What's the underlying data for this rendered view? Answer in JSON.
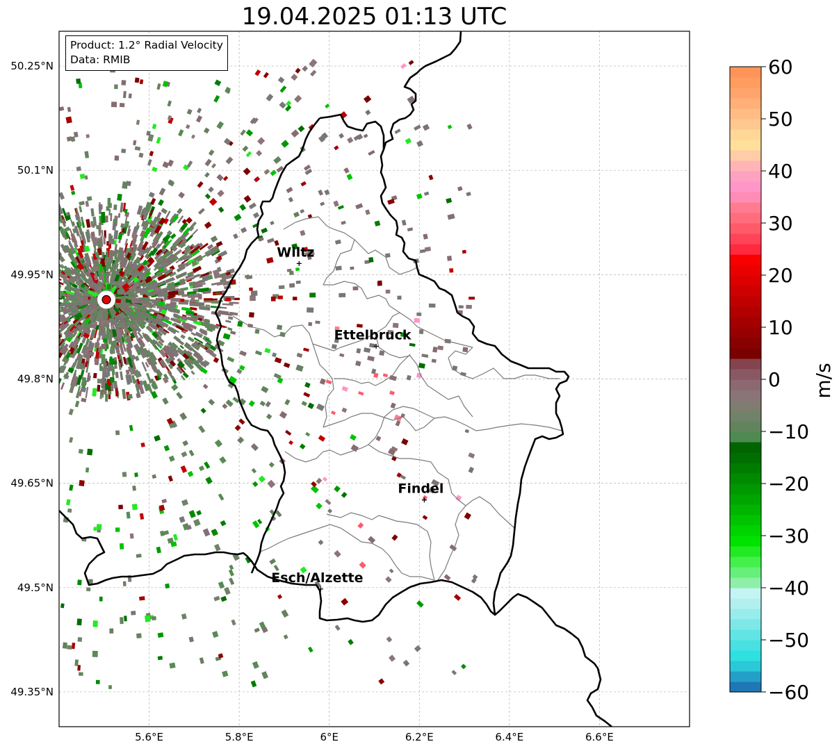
{
  "title": "19.04.2025 01:13 UTC",
  "info": {
    "product": "Product: 1.2° Radial Velocity",
    "data": "Data: RMIB"
  },
  "map": {
    "lon_range": [
      5.4,
      6.8
    ],
    "lat_range": [
      49.3,
      50.3
    ],
    "x_ticks": [
      "5.6°E",
      "5.8°E",
      "6°E",
      "6.2°E",
      "6.4°E",
      "6.6°E"
    ],
    "y_ticks": [
      "49.35°N",
      "49.5°N",
      "49.65°N",
      "49.8°N",
      "49.95°N",
      "50.1°N",
      "50.25°N"
    ],
    "radar_site": {
      "lon": 5.505,
      "lat": 49.914
    },
    "cities": [
      {
        "name": "Wiltz",
        "lon": 5.933,
        "lat": 49.966
      },
      {
        "name": "Ettelbruck",
        "lon": 6.104,
        "lat": 49.847
      },
      {
        "name": "Findel",
        "lon": 6.211,
        "lat": 49.626
      },
      {
        "name": "Esch/Alzette",
        "lon": 5.981,
        "lat": 49.498
      }
    ]
  },
  "colorbar": {
    "label": "m/s",
    "min": -60,
    "max": 60,
    "ticks": [
      "60",
      "50",
      "40",
      "30",
      "20",
      "10",
      "0",
      "−10",
      "−20",
      "−30",
      "−40",
      "−50",
      "−60"
    ],
    "tick_values": [
      60,
      50,
      40,
      30,
      20,
      10,
      0,
      -10,
      -20,
      -30,
      -40,
      -50,
      -60
    ],
    "colors_bottom_to_top": [
      "#1f77b4",
      "#23a0c8",
      "#2bc8d8",
      "#2ee0e0",
      "#48e0e0",
      "#62e4e4",
      "#7ee8e8",
      "#98ecec",
      "#b2f0f0",
      "#c4f4f4",
      "#8ef0a8",
      "#66f07a",
      "#44f04c",
      "#22ea22",
      "#00e200",
      "#00d400",
      "#00c400",
      "#00b400",
      "#00a600",
      "#009800",
      "#008a00",
      "#007c00",
      "#006e00",
      "#006400",
      "#4e8a52",
      "#62845c",
      "#708268",
      "#807c72",
      "#8a7478",
      "#8c6872",
      "#8a5864",
      "#84444e",
      "#7a0000",
      "#880000",
      "#960000",
      "#a40000",
      "#b20000",
      "#c00000",
      "#ce0000",
      "#dc0000",
      "#ea0000",
      "#f80000",
      "#ff2a40",
      "#ff4458",
      "#ff5a6a",
      "#ff6c7c",
      "#ff7c90",
      "#ff8cb4",
      "#ff96c8",
      "#ffa2c0",
      "#ffb4b6",
      "#ffcca8",
      "#ffe09a",
      "#ffd898",
      "#ffc890",
      "#ffbc84",
      "#ffb078",
      "#ffa46c",
      "#ff9c60",
      "#ff9458"
    ]
  }
}
